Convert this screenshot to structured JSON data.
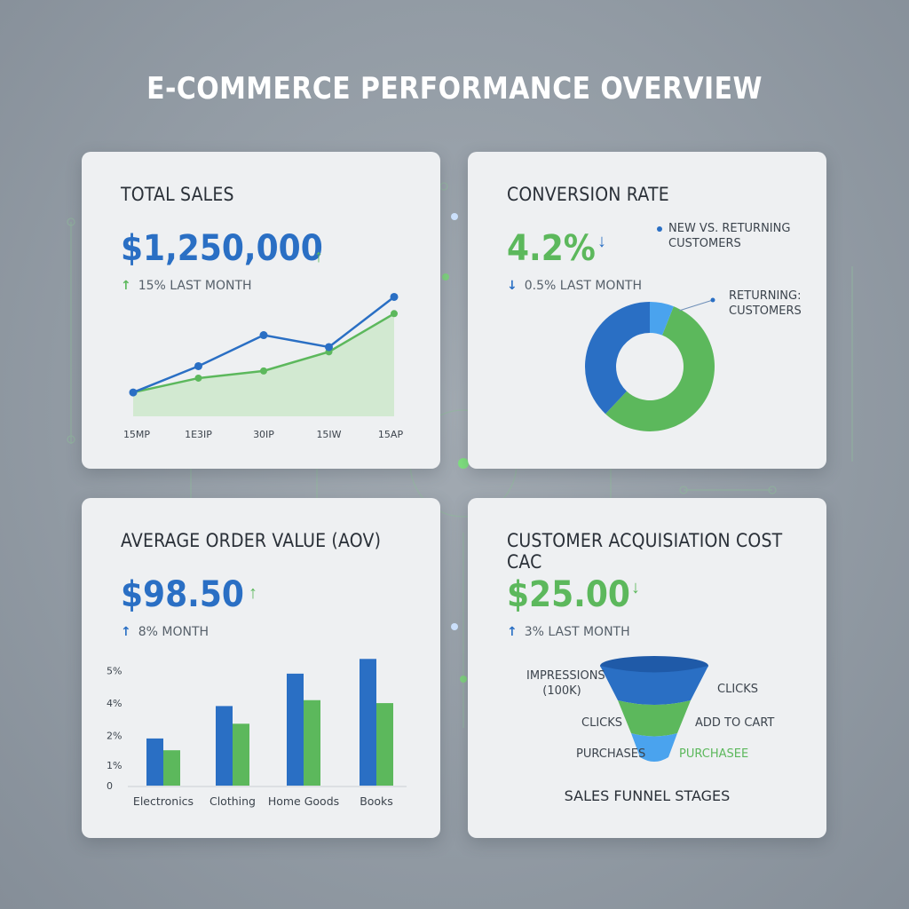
{
  "dashboard_title": "E-COMMERCE PERFORMANCE OVERVIEW",
  "colors": {
    "blue": "#2a6fc4",
    "green": "#5cb85c",
    "light_blue": "#4aa3ee",
    "text": "#2a3038"
  },
  "cards": {
    "total_sales": {
      "title": "TOTAL SALES",
      "value": "$1,250,000",
      "trend_icon": "arrow-up-icon",
      "change_text": "15% LAST MONTH"
    },
    "conversion_rate": {
      "title": "CONVERSION RATE",
      "value": "4.2%",
      "trend_icon": "arrow-down-icon",
      "change_text": "0.5% LAST MONTH",
      "legend_text": "NEW VS. RETURNING CUSTOMERS",
      "callout_text": "RETURNING: CUSTOMERS"
    },
    "aov": {
      "title": "AVERAGE ORDER VALUE (AOV)",
      "value": "$98.50",
      "trend_icon": "arrow-up-icon",
      "change_text": "8% MONTH"
    },
    "cac": {
      "title": "CUSTOMER ACQUISIATION COST CAC",
      "value": "$25.00",
      "trend_icon": "arrow-down-icon",
      "change_text": "3% LAST MONTH",
      "funnel_caption": "SALES FUNNEL STAGES",
      "funnel_labels": {
        "impressions": "IMPRESSIONS (100K)",
        "clicks_left": "CLICKS",
        "purchases_left": "PURCHASES",
        "clicks_right": "CLICKS",
        "add_to_cart": "ADD TO CART",
        "purchases_right": "PURCHASEE"
      }
    }
  },
  "chart_data": [
    {
      "type": "line",
      "x": [
        "15MP",
        "1E3IP",
        "30IP",
        "15IW",
        "15AP"
      ],
      "series": [
        {
          "values": [
            1.0,
            2.1,
            3.4,
            2.9,
            5.0
          ]
        },
        {
          "values": [
            1.0,
            1.6,
            1.9,
            2.7,
            4.3
          ]
        }
      ],
      "ylim": [
        0,
        5.5
      ],
      "area_fill": "second series",
      "grid": false
    },
    {
      "type": "pie",
      "donut": true,
      "slices": [
        {
          "value": 56,
          "color": "#5cb85c"
        },
        {
          "value": 38,
          "color": "#2a6fc4"
        },
        {
          "value": 6,
          "color": "#4aa3ee"
        }
      ]
    },
    {
      "type": "bar",
      "categories": [
        "Electronics",
        "Clothing",
        "Home Goods",
        "Books"
      ],
      "series": [
        {
          "values": [
            1.6,
            2.7,
            3.8,
            4.3
          ]
        },
        {
          "values": [
            1.2,
            2.1,
            2.9,
            2.8
          ]
        }
      ],
      "yticks": [
        "0",
        "1%",
        "2%",
        "4%",
        "5%"
      ],
      "ylim": [
        0,
        4.7
      ]
    },
    {
      "type": "funnel",
      "stages": [
        "IMPRESSIONS",
        "CLICKS",
        "PURCHASES"
      ],
      "colors": [
        "#2a6fc4",
        "#5cb85c",
        "#4aa3ee"
      ]
    }
  ]
}
